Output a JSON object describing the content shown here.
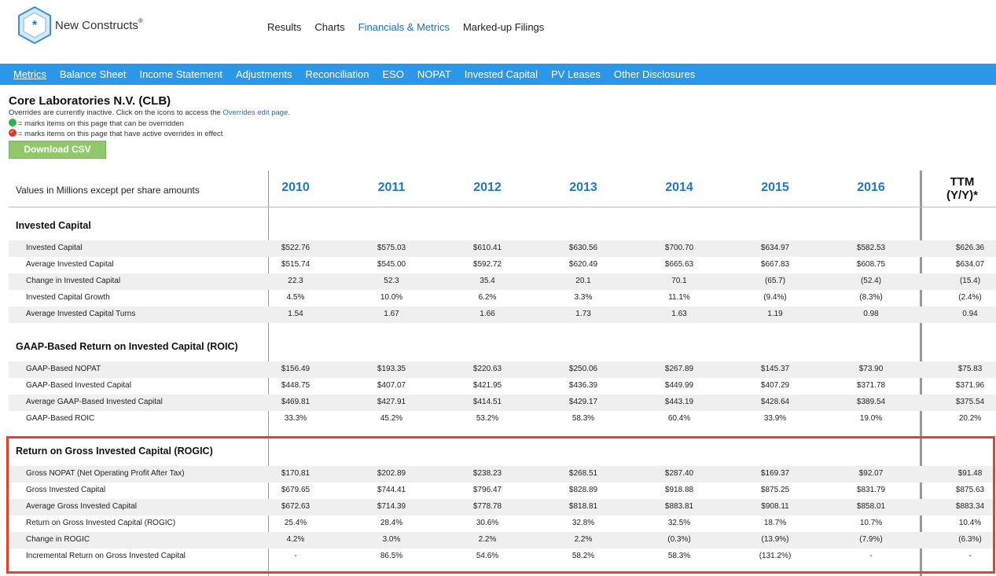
{
  "brand": {
    "name": "New Constructs",
    "reg": "®"
  },
  "topnav": [
    "Results",
    "Charts",
    "Financials & Metrics",
    "Marked-up Filings"
  ],
  "topnav_active": 2,
  "subnav": [
    "Metrics",
    "Balance Sheet",
    "Income Statement",
    "Adjustments",
    "Reconciliation",
    "ESO",
    "NOPAT",
    "Invested Capital",
    "PV Leases",
    "Other Disclosures"
  ],
  "subnav_active": 0,
  "company": {
    "title": "Core Laboratories N.V. (CLB)"
  },
  "notes": {
    "line1_pre": "Overrides are currently inactive. Click on the icons to access the ",
    "line1_link": "Overrides edit page",
    "line1_post": ".",
    "line2": "= marks items on this page that can be overridden",
    "line3": "= marks items on this page that have active overrides in effect"
  },
  "download_label": "Download CSV",
  "table": {
    "header_label": "Values in Millions except per share amounts",
    "years": [
      "2010",
      "2011",
      "2012",
      "2013",
      "2014",
      "2015",
      "2016"
    ],
    "ttm_line1": "TTM",
    "ttm_line2": "(Y/Y)*",
    "sections": [
      {
        "title": "Invested Capital",
        "rows": [
          {
            "label": "Invested Capital",
            "values": [
              "$522.76",
              "$575.03",
              "$610.41",
              "$630.56",
              "$700.70",
              "$634.97",
              "$582.53",
              "$626.36"
            ]
          },
          {
            "label": "Average Invested Capital",
            "values": [
              "$515.74",
              "$545.00",
              "$592.72",
              "$620.49",
              "$665.63",
              "$667.83",
              "$608.75",
              "$634.07"
            ]
          },
          {
            "label": "Change in Invested Capital",
            "values": [
              "22.3",
              "52.3",
              "35.4",
              "20.1",
              "70.1",
              "(65.7)",
              "(52.4)",
              "(15.4)"
            ]
          },
          {
            "label": "Invested Capital Growth",
            "values": [
              "4.5%",
              "10.0%",
              "6.2%",
              "3.3%",
              "11.1%",
              "(9.4%)",
              "(8.3%)",
              "(2.4%)"
            ]
          },
          {
            "label": "Average Invested Capital Turns",
            "values": [
              "1.54",
              "1.67",
              "1.66",
              "1.73",
              "1.63",
              "1.19",
              "0.98",
              "0.94"
            ]
          }
        ]
      },
      {
        "title": "GAAP-Based Return on Invested Capital (ROIC)",
        "rows": [
          {
            "label": "GAAP-Based NOPAT",
            "values": [
              "$156.49",
              "$193.35",
              "$220.63",
              "$250.06",
              "$267.89",
              "$145.37",
              "$73.90",
              "$75.83"
            ]
          },
          {
            "label": "GAAP-Based Invested Capital",
            "values": [
              "$448.75",
              "$407.07",
              "$421.95",
              "$436.39",
              "$449.99",
              "$407.29",
              "$371.78",
              "$371.96"
            ]
          },
          {
            "label": "Average GAAP-Based Invested Capital",
            "values": [
              "$469.81",
              "$427.91",
              "$414.51",
              "$429.17",
              "$443.19",
              "$428.64",
              "$389.54",
              "$375.54"
            ]
          },
          {
            "label": "GAAP-Based ROIC",
            "values": [
              "33.3%",
              "45.2%",
              "53.2%",
              "58.3%",
              "60.4%",
              "33.9%",
              "19.0%",
              "20.2%"
            ]
          }
        ]
      },
      {
        "title": "Return on Gross Invested Capital (ROGIC)",
        "rows": [
          {
            "label": "Gross NOPAT (Net Operating Profit After Tax)",
            "values": [
              "$170.81",
              "$202.89",
              "$238.23",
              "$268.51",
              "$287.40",
              "$169.37",
              "$92.07",
              "$91.48"
            ]
          },
          {
            "label": "Gross Invested Capital",
            "values": [
              "$679.65",
              "$744.41",
              "$796.47",
              "$828.89",
              "$918.88",
              "$875.25",
              "$831.79",
              "$875.63"
            ]
          },
          {
            "label": "Average Gross Invested Capital",
            "values": [
              "$672.63",
              "$714.39",
              "$778.78",
              "$818.81",
              "$883.81",
              "$908.11",
              "$858.01",
              "$883.34"
            ]
          },
          {
            "label": "Return on Gross Invested Capital (ROGIC)",
            "values": [
              "25.4%",
              "28.4%",
              "30.6%",
              "32.8%",
              "32.5%",
              "18.7%",
              "10.7%",
              "10.4%"
            ]
          },
          {
            "label": "Change in ROGIC",
            "values": [
              "4.2%",
              "3.0%",
              "2.2%",
              "2.2%",
              "(0.3%)",
              "(13.9%)",
              "(7.9%)",
              "(6.3%)"
            ]
          },
          {
            "label": "Incremental Return on Gross Invested Capital",
            "values": [
              "-",
              "86.5%",
              "54.6%",
              "58.2%",
              "58.3%",
              "(131.2%)",
              "-",
              "-"
            ]
          }
        ]
      }
    ]
  },
  "colors": {
    "accent": "#2a97e8",
    "year": "#1e78c8",
    "highlight": "#e8402c",
    "button": "#8fc96a"
  }
}
